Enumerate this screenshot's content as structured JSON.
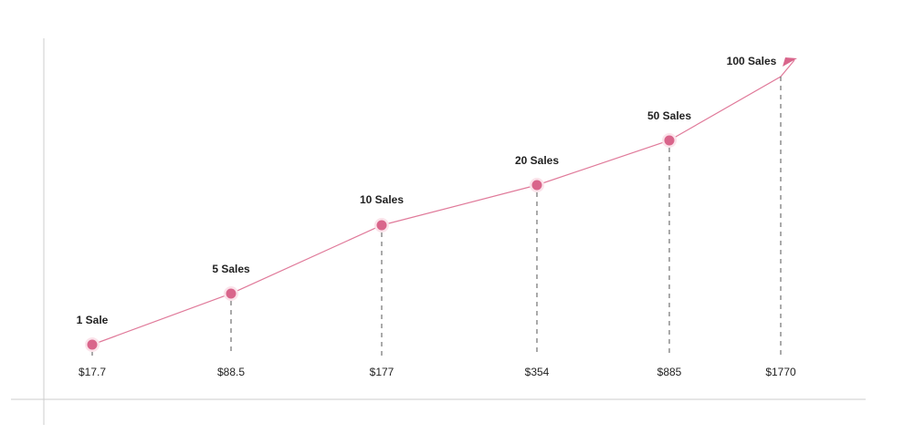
{
  "points": [
    {
      "label": "1 Sale",
      "price": "$17.7"
    },
    {
      "label": "5 Sales",
      "price": "$88.5"
    },
    {
      "label": "10 Sales",
      "price": "$177"
    },
    {
      "label": "20 Sales",
      "price": "$354"
    },
    {
      "label": "50 Sales",
      "price": "$885"
    },
    {
      "label": "100 Sales",
      "price": "$1770"
    }
  ]
}
